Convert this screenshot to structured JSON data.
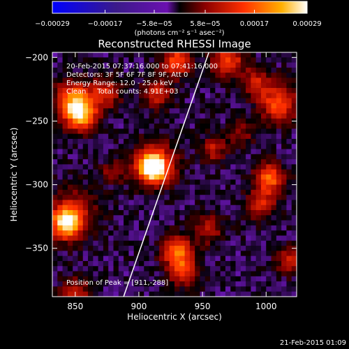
{
  "chart_data": {
    "type": "heatmap",
    "title": "Reconstructed RHESSI Image",
    "xlabel": "Heliocentric X (arcsec)",
    "ylabel": "Heliocentric Y (arcsec)",
    "xlim": [
      832,
      1024
    ],
    "ylim": [
      -388,
      -196
    ],
    "x_ticks": [
      850,
      900,
      950,
      1000
    ],
    "y_ticks": [
      -200,
      -250,
      -300,
      -350
    ],
    "x_tick_labels": [
      "850",
      "900",
      "950",
      "1000"
    ],
    "y_tick_labels": [
      "−200",
      "−250",
      "−300",
      "−350"
    ],
    "colorbar": {
      "ticks": [
        -0.00029,
        -0.00017,
        -5.8e-05,
        5.8e-05,
        0.00017,
        0.00029
      ],
      "tick_labels": [
        "−0.00029",
        "−0.00017",
        "−5.8e−05",
        "5.8e−05",
        "0.00017",
        "0.00029"
      ],
      "units_line": "(photons cm⁻² s⁻¹ asec⁻²)",
      "range": [
        -0.00029,
        0.00029
      ]
    },
    "annotations": [
      "20-Feb-2015 07:37:16.000 to 07:41:16.000",
      "Detectors: 3F 5F 6F 7F 8F 9F, Att 0",
      "Energy Range: 12.0 - 25.0 keV",
      "Clean     Total counts: 4.91E+03"
    ],
    "peak_label": "Position of Peak = [911,-288]",
    "peak": {
      "x": 911,
      "y": -288
    },
    "limb_curve": [
      {
        "x": 888,
        "y": -388
      },
      {
        "x": 955,
        "y": -196
      }
    ],
    "sources": [
      {
        "x": 911,
        "y": -287,
        "amp": 1.0,
        "sigma": 7
      },
      {
        "x": 912,
        "y": -284,
        "amp": 0.55,
        "sigma": 12
      },
      {
        "x": 843,
        "y": -330,
        "amp": 0.95,
        "sigma": 8
      },
      {
        "x": 848,
        "y": -322,
        "amp": 0.35,
        "sigma": 14
      },
      {
        "x": 854,
        "y": -244,
        "amp": 0.9,
        "sigma": 9
      },
      {
        "x": 848,
        "y": -232,
        "amp": 0.55,
        "sigma": 10
      },
      {
        "x": 874,
        "y": -228,
        "amp": 0.45,
        "sigma": 8
      },
      {
        "x": 930,
        "y": -203,
        "amp": 0.6,
        "sigma": 8
      },
      {
        "x": 915,
        "y": -228,
        "amp": 0.45,
        "sigma": 8
      },
      {
        "x": 930,
        "y": -352,
        "amp": 0.7,
        "sigma": 8
      },
      {
        "x": 935,
        "y": -368,
        "amp": 0.5,
        "sigma": 8
      },
      {
        "x": 970,
        "y": -202,
        "amp": 0.55,
        "sigma": 9
      },
      {
        "x": 1010,
        "y": -236,
        "amp": 0.6,
        "sigma": 10
      },
      {
        "x": 992,
        "y": -220,
        "amp": 0.4,
        "sigma": 8
      },
      {
        "x": 1003,
        "y": -295,
        "amp": 0.65,
        "sigma": 8
      },
      {
        "x": 996,
        "y": -315,
        "amp": 0.45,
        "sigma": 8
      },
      {
        "x": 958,
        "y": -272,
        "amp": 0.38,
        "sigma": 7
      },
      {
        "x": 955,
        "y": -335,
        "amp": 0.35,
        "sigma": 8
      },
      {
        "x": 850,
        "y": -385,
        "amp": 0.4,
        "sigma": 8
      },
      {
        "x": 880,
        "y": -290,
        "amp": 0.3,
        "sigma": 6
      },
      {
        "x": 1018,
        "y": -360,
        "amp": 0.4,
        "sigma": 7
      },
      {
        "x": 980,
        "y": -260,
        "amp": 0.28,
        "sigma": 7
      }
    ],
    "background_level": -0.06,
    "grid": false
  },
  "footer_timestamp": "21-Feb-2015 01:09"
}
